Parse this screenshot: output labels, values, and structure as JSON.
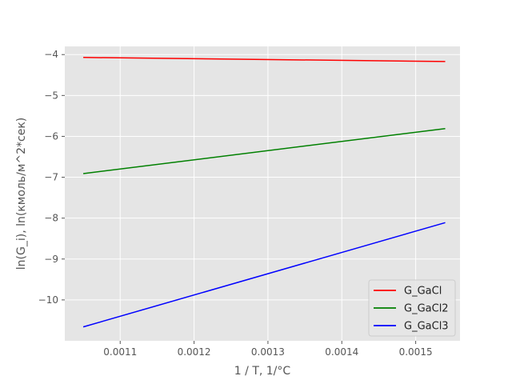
{
  "chart_data": {
    "type": "line",
    "title": "",
    "xlabel": "1 / T, 1/°C",
    "ylabel": "ln(G_i), ln(кмоль/м^2*сек)",
    "xlim": [
      0.001025,
      0.00156
    ],
    "ylim": [
      -11.0,
      -3.8
    ],
    "xticks": [
      0.0011,
      0.0012,
      0.0013,
      0.0014,
      0.0015
    ],
    "xtick_labels": [
      "0.0011",
      "0.0012",
      "0.0013",
      "0.0014",
      "0.0015"
    ],
    "yticks": [
      -10,
      -9,
      -8,
      -7,
      -6,
      -5,
      -4
    ],
    "ytick_labels": [
      "−10",
      "−9",
      "−8",
      "−7",
      "−6",
      "−5",
      "−4"
    ],
    "grid": true,
    "legend_position": "lower-right",
    "series": [
      {
        "name": "G_GaCl",
        "color": "#ff0000",
        "x": [
          0.00105,
          0.00154
        ],
        "y": [
          -4.07,
          -4.17
        ]
      },
      {
        "name": "G_GaCl2",
        "color": "#008000",
        "x": [
          0.00105,
          0.00154
        ],
        "y": [
          -6.91,
          -5.81
        ]
      },
      {
        "name": "G_GaCl3",
        "color": "#0000ff",
        "x": [
          0.00105,
          0.00154
        ],
        "y": [
          -10.66,
          -8.11
        ]
      }
    ]
  }
}
